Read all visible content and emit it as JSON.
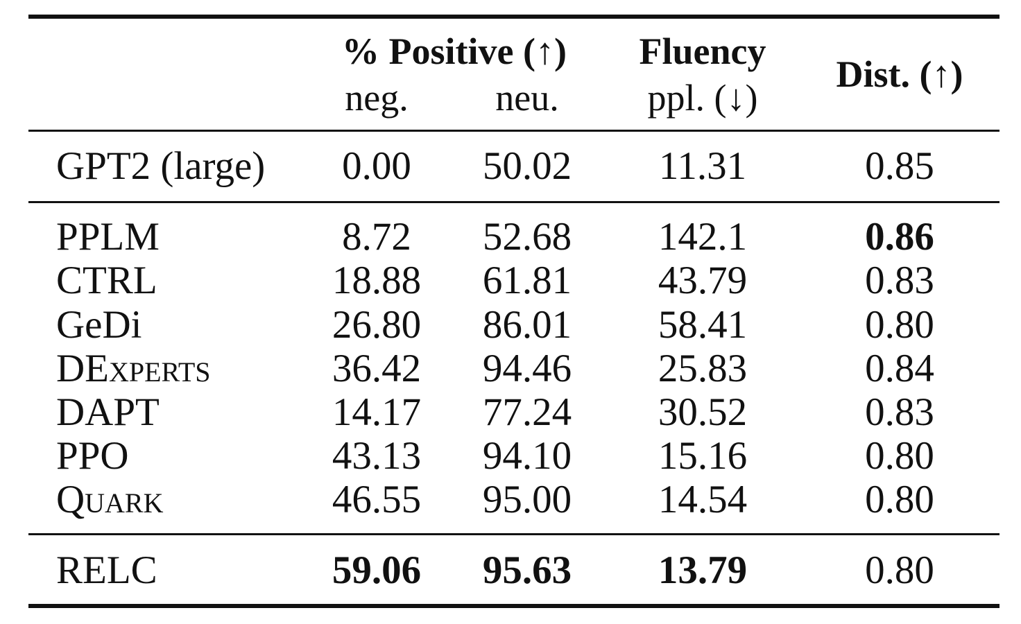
{
  "table": {
    "header": {
      "positive_group": "% Positive (↑)",
      "positive_neg": "neg.",
      "positive_neu": "neu.",
      "fluency_group": "Fluency",
      "fluency_sub": "ppl. (↓)",
      "dist": "Dist. (↑)"
    },
    "baseline": {
      "model": "GPT2 (large)",
      "neg": "0.00",
      "neu": "50.02",
      "ppl": "11.31",
      "dist": "0.85"
    },
    "rows": [
      {
        "model": "PPLM",
        "neg": "8.72",
        "neu": "52.68",
        "ppl": "142.1",
        "dist": "0.86"
      },
      {
        "model": "CTRL",
        "neg": "18.88",
        "neu": "61.81",
        "ppl": "43.79",
        "dist": "0.83"
      },
      {
        "model": "GeDi",
        "neg": "26.80",
        "neu": "86.01",
        "ppl": "58.41",
        "dist": "0.80"
      },
      {
        "model": "DExperts",
        "neg": "36.42",
        "neu": "94.46",
        "ppl": "25.83",
        "dist": "0.84"
      },
      {
        "model": "DAPT",
        "neg": "14.17",
        "neu": "77.24",
        "ppl": "30.52",
        "dist": "0.83"
      },
      {
        "model": "PPO",
        "neg": "43.13",
        "neu": "94.10",
        "ppl": "15.16",
        "dist": "0.80"
      },
      {
        "model": "Quark",
        "neg": "46.55",
        "neu": "95.00",
        "ppl": "14.54",
        "dist": "0.80"
      }
    ],
    "final": {
      "model": "RELC",
      "neg": "59.06",
      "neu": "95.63",
      "ppl": "13.79",
      "dist": "0.80"
    }
  }
}
